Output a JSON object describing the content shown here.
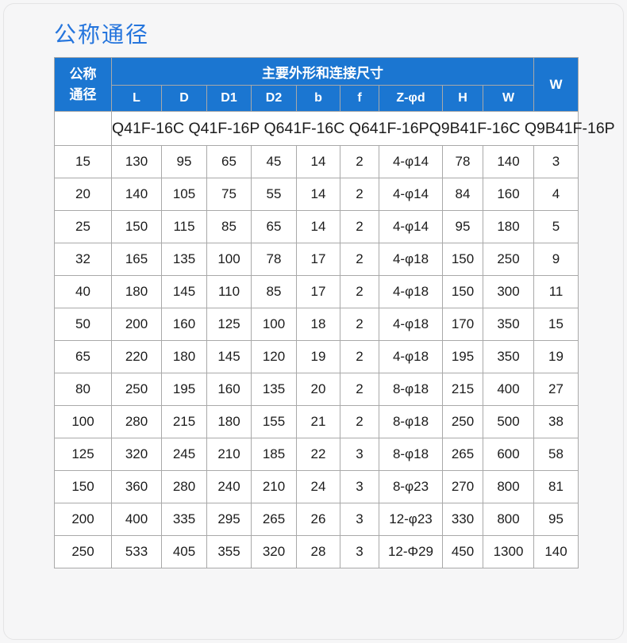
{
  "page": {
    "title": "公称通径"
  },
  "colors": {
    "page_bg": "#f6f6f7",
    "title_color": "#2575dd",
    "header_bg": "#1b76d1",
    "header_text": "#ffffff",
    "border_color": "#a9a9a9",
    "cell_bg": "#ffffff",
    "text_color": "#1c1c1c"
  },
  "table": {
    "corner_header": "公称通径",
    "group_header": "主要外形和连接尺寸",
    "last_col_header": "W",
    "sub_headers": [
      "L",
      "D",
      "D1",
      "D2",
      "b",
      "f",
      "Z-φd",
      "H",
      "W"
    ],
    "models_row": "Q41F-16C Q41F-16P Q641F-16C Q641F-16PQ9B41F-16C Q9B41F-16P",
    "rows": [
      [
        "15",
        "130",
        "95",
        "65",
        "45",
        "14",
        "2",
        "4-φ14",
        "78",
        "140",
        "3"
      ],
      [
        "20",
        "140",
        "105",
        "75",
        "55",
        "14",
        "2",
        "4-φ14",
        "84",
        "160",
        "4"
      ],
      [
        "25",
        "150",
        "115",
        "85",
        "65",
        "14",
        "2",
        "4-φ14",
        "95",
        "180",
        "5"
      ],
      [
        "32",
        "165",
        "135",
        "100",
        "78",
        "17",
        "2",
        "4-φ18",
        "150",
        "250",
        "9"
      ],
      [
        "40",
        "180",
        "145",
        "110",
        "85",
        "17",
        "2",
        "4-φ18",
        "150",
        "300",
        "11"
      ],
      [
        "50",
        "200",
        "160",
        "125",
        "100",
        "18",
        "2",
        "4-φ18",
        "170",
        "350",
        "15"
      ],
      [
        "65",
        "220",
        "180",
        "145",
        "120",
        "19",
        "2",
        "4-φ18",
        "195",
        "350",
        "19"
      ],
      [
        "80",
        "250",
        "195",
        "160",
        "135",
        "20",
        "2",
        "8-φ18",
        "215",
        "400",
        "27"
      ],
      [
        "100",
        "280",
        "215",
        "180",
        "155",
        "21",
        "2",
        "8-φ18",
        "250",
        "500",
        "38"
      ],
      [
        "125",
        "320",
        "245",
        "210",
        "185",
        "22",
        "3",
        "8-φ18",
        "265",
        "600",
        "58"
      ],
      [
        "150",
        "360",
        "280",
        "240",
        "210",
        "24",
        "3",
        "8-φ23",
        "270",
        "800",
        "81"
      ],
      [
        "200",
        "400",
        "335",
        "295",
        "265",
        "26",
        "3",
        "12-φ23",
        "330",
        "800",
        "95"
      ],
      [
        "250",
        "533",
        "405",
        "355",
        "320",
        "28",
        "3",
        "12-Φ29",
        "450",
        "1300",
        "140"
      ]
    ]
  }
}
